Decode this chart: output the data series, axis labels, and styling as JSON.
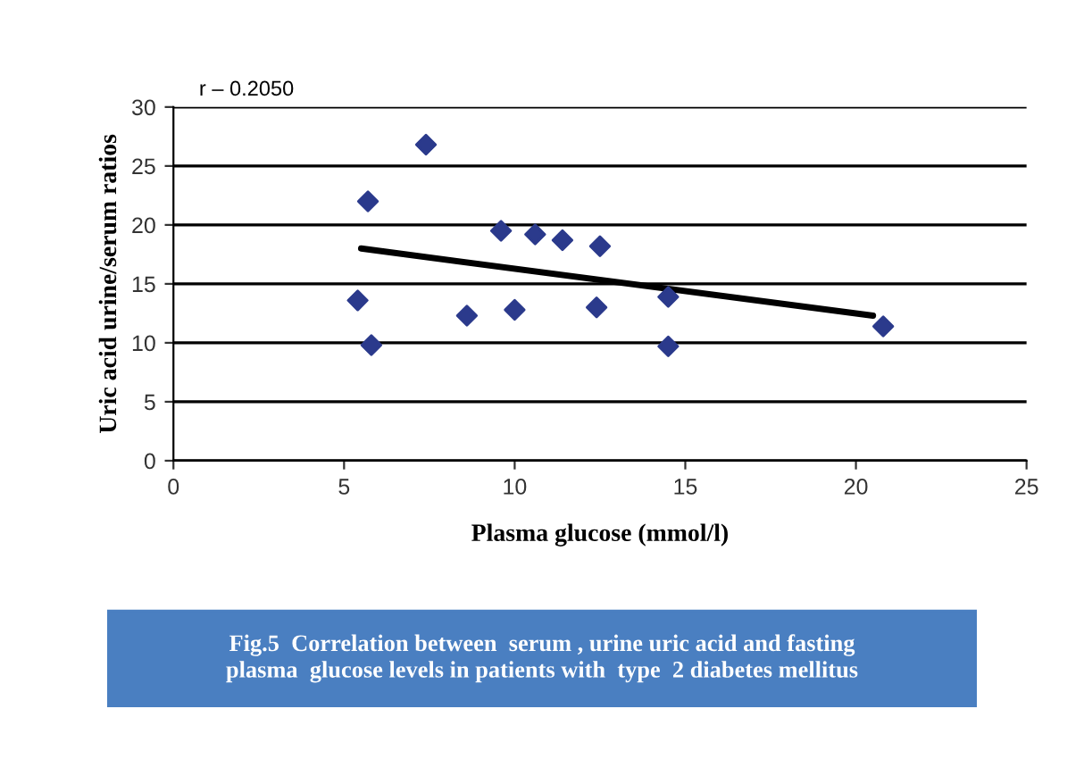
{
  "chart_data": {
    "type": "scatter",
    "xlabel": "Plasma glucose (mmol/l)",
    "ylabel": "Uric acid urine/serum ratios",
    "annotations": [
      "r – 0.2050",
      "Fig.5  Correlation between  serum , urine uric acid and fasting plasma  glucose levels in patients with  type  2 diabetes mellitus"
    ],
    "series": [
      {
        "color": "#2b3a8c",
        "marker": "diamond",
        "x": [
          5.4,
          5.7,
          5.8,
          7.4,
          8.6,
          9.6,
          10,
          10.6,
          11.4,
          12.4,
          12.5,
          14.5,
          14.5,
          20.8
        ],
        "values": [
          13.6,
          22,
          9.8,
          26.8,
          12.3,
          19.5,
          12.8,
          19.2,
          18.7,
          13,
          18.2,
          13.9,
          9.7,
          11.4
        ]
      },
      {
        "type": "line",
        "color": "#000000",
        "marker": "none",
        "x": [
          5.5,
          20.5
        ],
        "values": [
          18,
          12.3
        ]
      }
    ],
    "xlim": [
      0,
      25
    ],
    "xticks": [
      0,
      5,
      10,
      15,
      20,
      25
    ],
    "ylim": [
      0,
      30
    ],
    "yticks": [
      0,
      5,
      10,
      15,
      20,
      25,
      30
    ],
    "grid": "y",
    "legend": false
  }
}
